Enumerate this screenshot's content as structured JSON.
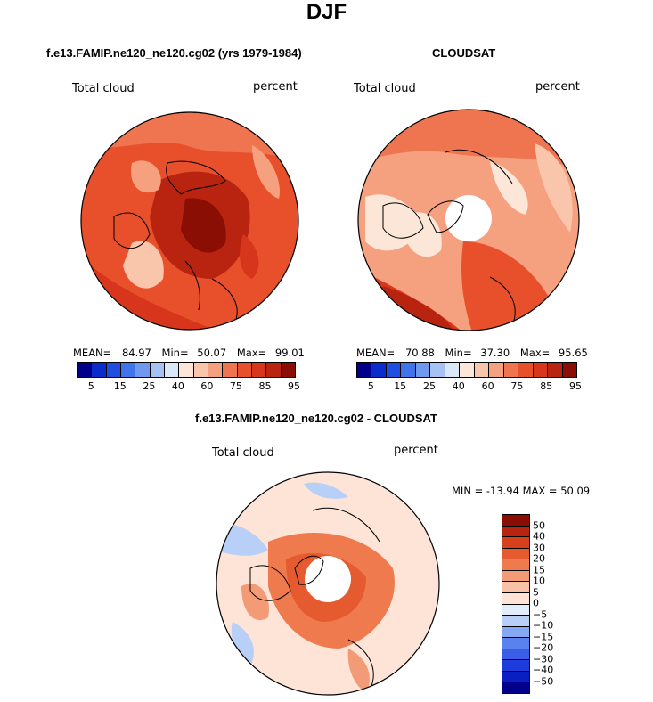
{
  "title": "DJF",
  "colors": {
    "full_scale": [
      "#00008b",
      "#0a2ccc",
      "#1e4fe0",
      "#3f74ea",
      "#6f98ef",
      "#a5c2f3",
      "#d9e8f8",
      "#fbe6d8",
      "#f9c6ab",
      "#f5a07e",
      "#ef7550",
      "#e8502c",
      "#d8361c",
      "#b82410",
      "#8b0e04"
    ],
    "diff_scale": [
      "#00008b",
      "#0a1ec4",
      "#1e3cdc",
      "#3a5ee8",
      "#5a82ee",
      "#85a8f2",
      "#b8d0f7",
      "#e2ecfb",
      "#fde4d6",
      "#f8c2a6",
      "#f39b76",
      "#ee7a4e",
      "#e65a2f",
      "#d6401d",
      "#b82410",
      "#8b0e04"
    ]
  },
  "panels": [
    {
      "title": "f.e13.FAMIP.ne120_ne120.cg02 (yrs 1979-1984)",
      "variable": "Total cloud",
      "units": "percent",
      "stats": {
        "mean_label": "MEAN=",
        "mean": "84.97",
        "min_label": "Min=",
        "min": "50.07",
        "max_label": "Max=",
        "max": "99.01"
      },
      "colorbar_ticks": [
        "5",
        "15",
        "25",
        "40",
        "60",
        "75",
        "85",
        "95"
      ]
    },
    {
      "title": "CLOUDSAT",
      "variable": "Total cloud",
      "units": "percent",
      "stats": {
        "mean_label": "MEAN=",
        "mean": "70.88",
        "min_label": "Min=",
        "min": "37.30",
        "max_label": "Max=",
        "max": "95.65"
      },
      "colorbar_ticks": [
        "5",
        "15",
        "25",
        "40",
        "60",
        "75",
        "85",
        "95"
      ]
    },
    {
      "title": "f.e13.FAMIP.ne120_ne120.cg02 - CLOUDSAT",
      "variable": "Total cloud",
      "units": "percent",
      "stats_text": "MIN = -13.94 MAX =  50.09",
      "colorbar_ticks": [
        "50",
        "40",
        "30",
        "20",
        "15",
        "10",
        "5",
        "0",
        "−5",
        "−10",
        "−15",
        "−20",
        "−30",
        "−40",
        "−50"
      ]
    }
  ]
}
